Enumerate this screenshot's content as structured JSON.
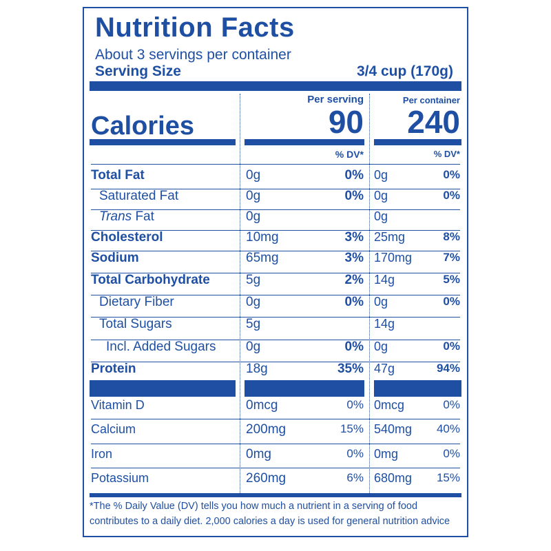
{
  "title": "Nutrition Facts",
  "servings_per_container": "About 3 servings per container",
  "serving_size_label": "Serving Size",
  "serving_size_value": "3/4 cup (170g)",
  "calories_label": "Calories",
  "per_serving_label": "Per serving",
  "per_container_label": "Per container",
  "calories_per_serving": "90",
  "calories_per_container": "240",
  "dv_label_serving": "% DV*",
  "dv_label_container": "% DV*",
  "nutrients": [
    {
      "name": "Total Fat",
      "serving": "0g",
      "serving_dv": "0%",
      "container": "0g",
      "container_dv": "0%"
    },
    {
      "name": "Saturated Fat",
      "serving": "0g",
      "serving_dv": "0%",
      "container": "0g",
      "container_dv": "0%"
    },
    {
      "name_italic": "Trans",
      "name": "Fat",
      "serving": "0g",
      "serving_dv": "",
      "container": "0g",
      "container_dv": ""
    },
    {
      "name": "Cholesterol",
      "serving": "10mg",
      "serving_dv": "3%",
      "container": "25mg",
      "container_dv": "8%"
    },
    {
      "name": "Sodium",
      "serving": "65mg",
      "serving_dv": "3%",
      "container": "170mg",
      "container_dv": "7%"
    },
    {
      "name": "Total Carbohydrate",
      "serving": "5g",
      "serving_dv": "2%",
      "container": "14g",
      "container_dv": "5%"
    },
    {
      "name": "Dietary Fiber",
      "serving": "0g",
      "serving_dv": "0%",
      "container": "0g",
      "container_dv": "0%"
    },
    {
      "name": "Total Sugars",
      "serving": "5g",
      "serving_dv": "",
      "container": "14g",
      "container_dv": ""
    },
    {
      "name": "Incl. Added Sugars",
      "serving": "0g",
      "serving_dv": "0%",
      "container": "0g",
      "container_dv": "0%"
    },
    {
      "name": "Protein",
      "serving": "18g",
      "serving_dv": "35%",
      "container": "47g",
      "container_dv": "94%"
    }
  ],
  "vitamins": [
    {
      "name": "Vitamin D",
      "serving": "0mcg",
      "serving_dv": "0%",
      "container": "0mcg",
      "container_dv": "0%"
    },
    {
      "name": "Calcium",
      "serving": "200mg",
      "serving_dv": "15%",
      "container": "540mg",
      "container_dv": "40%"
    },
    {
      "name": "Iron",
      "serving": "0mg",
      "serving_dv": "0%",
      "container": "0mg",
      "container_dv": "0%"
    },
    {
      "name": "Potassium",
      "serving": "260mg",
      "serving_dv": "6%",
      "container": "680mg",
      "container_dv": "15%"
    }
  ],
  "footnote_line1": "*The % Daily Value (DV) tells you how much a nutrient in a serving of food",
  "footnote_line2": "contributes to a daily diet. 2,000 calories a day is used for general nutrition advice"
}
